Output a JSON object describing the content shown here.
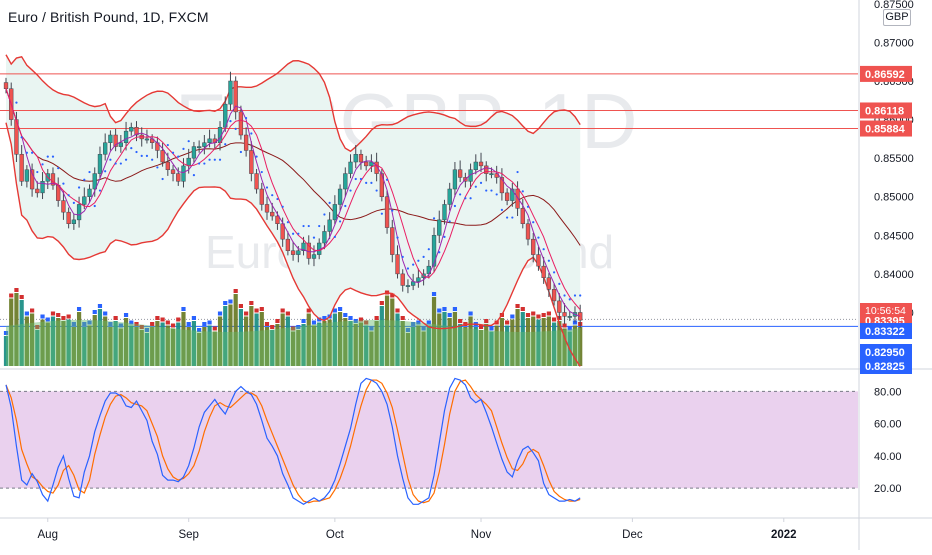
{
  "header": {
    "title": "Euro / British Pound, 1D, FXCM",
    "currency": "GBP"
  },
  "watermark": {
    "symbol": "EURGBP, 1D",
    "name": "Euro / British Pound"
  },
  "colors": {
    "up": "#26a69a",
    "down": "#ef5350",
    "bb_band": "#e53935",
    "bb_basis": "#8b1a1a",
    "bb_fill": "#e9f5f2",
    "psar": "#2962ff",
    "ma_fast": "#9c27b0",
    "ma_slow": "#e91e63",
    "vol_bar": "#6b7c2a",
    "vol_area": "#66bb6a",
    "vol_hi": "#2962ff",
    "vol_hi_down": "#d32f2f",
    "stoch_k": "#2962ff",
    "stoch_d": "#ff6d00",
    "stoch_band": "#e1bee7",
    "hline": "#ef5350"
  },
  "chart_data": [
    {
      "type": "candlestick",
      "title": "Euro / British Pound, 1D, FXCM",
      "ylim": [
        0.8278,
        0.8755
      ],
      "y_ticks": [
        "0.87500",
        "0.87000",
        "0.86500",
        "0.86000",
        "0.85500",
        "0.85000",
        "0.84500",
        "0.84000",
        "0.83500"
      ],
      "y_tick_values": [
        0.875,
        0.87,
        0.865,
        0.86,
        0.855,
        0.85,
        0.845,
        0.84,
        0.835
      ],
      "x_ticks": [
        "Aug",
        "Sep",
        "Oct",
        "Nov",
        "Dec",
        "2022"
      ],
      "x_tick_index": [
        8,
        35,
        63,
        91,
        120,
        149
      ],
      "horizontal_lines": [
        0.86592,
        0.86118,
        0.85884
      ],
      "price_labels": [
        {
          "value": 0.86592,
          "text": "0.86592",
          "kind": "line"
        },
        {
          "value": 0.86118,
          "text": "0.86118",
          "kind": "line"
        },
        {
          "value": 0.85884,
          "text": "0.85884",
          "kind": "line"
        },
        {
          "value": 0.83395,
          "text": "0.83395",
          "kind": "last"
        },
        {
          "value": 0.83322,
          "text": "0.83322",
          "kind": "indicator"
        },
        {
          "value": 0.8295,
          "text": "0.82950",
          "kind": "indicator"
        },
        {
          "value": 0.82825,
          "text": "0.82825",
          "kind": "indicator"
        }
      ],
      "countdown": "10:56:54",
      "closes": [
        0.864,
        0.86,
        0.8555,
        0.852,
        0.8535,
        0.851,
        0.8505,
        0.852,
        0.853,
        0.8515,
        0.8495,
        0.848,
        0.8465,
        0.847,
        0.849,
        0.85,
        0.851,
        0.853,
        0.8555,
        0.857,
        0.858,
        0.8565,
        0.857,
        0.8585,
        0.859,
        0.858,
        0.8575,
        0.8575,
        0.857,
        0.856,
        0.8545,
        0.8535,
        0.853,
        0.852,
        0.854,
        0.855,
        0.8565,
        0.8565,
        0.857,
        0.8575,
        0.857,
        0.859,
        0.862,
        0.865,
        0.861,
        0.858,
        0.856,
        0.853,
        0.851,
        0.849,
        0.848,
        0.8475,
        0.8465,
        0.8445,
        0.843,
        0.8425,
        0.843,
        0.844,
        0.842,
        0.8425,
        0.844,
        0.8455,
        0.847,
        0.849,
        0.851,
        0.853,
        0.8545,
        0.8555,
        0.8545,
        0.854,
        0.8545,
        0.853,
        0.85,
        0.846,
        0.8425,
        0.84,
        0.8385,
        0.8385,
        0.839,
        0.8395,
        0.84,
        0.841,
        0.845,
        0.847,
        0.849,
        0.851,
        0.8535,
        0.8525,
        0.852,
        0.8535,
        0.8545,
        0.854,
        0.853,
        0.853,
        0.8525,
        0.8505,
        0.8495,
        0.851,
        0.8485,
        0.8465,
        0.8445,
        0.8425,
        0.841,
        0.8395,
        0.838,
        0.8365,
        0.835,
        0.8345,
        0.8345,
        0.835,
        0.834
      ],
      "series": [
        {
          "name": "%K",
          "values": [
            84,
            70,
            46,
            25,
            22,
            29,
            24,
            16,
            12,
            22,
            33,
            40,
            26,
            15,
            14,
            30,
            40,
            55,
            65,
            74,
            79,
            79,
            77,
            71,
            70,
            74,
            68,
            62,
            49,
            41,
            28,
            25,
            25,
            24,
            27,
            34,
            45,
            58,
            67,
            71,
            75,
            70,
            66,
            73,
            80,
            83,
            80,
            78,
            72,
            62,
            51,
            46,
            40,
            29,
            22,
            14,
            12,
            10,
            12,
            14,
            12,
            14,
            18,
            25,
            35,
            46,
            57,
            72,
            85,
            88,
            87,
            85,
            80,
            72,
            58,
            40,
            26,
            14,
            10,
            10,
            12,
            14,
            28,
            48,
            68,
            82,
            88,
            87,
            84,
            76,
            73,
            75,
            67,
            58,
            48,
            38,
            30,
            27,
            37,
            44,
            46,
            42,
            37,
            23,
            16,
            14,
            12,
            12,
            13,
            12,
            14
          ]
        },
        {
          "name": "%D",
          "values": [
            84,
            76,
            62,
            44,
            35,
            27,
            25,
            21,
            18,
            17,
            22,
            31,
            34,
            28,
            19,
            17,
            25,
            41,
            53,
            64,
            72,
            77,
            78,
            76,
            73,
            72,
            71,
            68,
            60,
            52,
            40,
            32,
            27,
            25,
            26,
            29,
            34,
            43,
            55,
            64,
            71,
            73,
            71,
            70,
            73,
            76,
            79,
            79,
            77,
            71,
            62,
            54,
            46,
            38,
            30,
            22,
            16,
            12,
            11,
            12,
            12,
            13,
            14,
            19,
            26,
            35,
            46,
            59,
            71,
            81,
            87,
            87,
            85,
            79,
            70,
            56,
            41,
            26,
            16,
            12,
            11,
            12,
            17,
            30,
            47,
            66,
            80,
            86,
            87,
            83,
            78,
            75,
            72,
            68,
            58,
            48,
            39,
            32,
            31,
            35,
            42,
            44,
            42,
            34,
            25,
            18,
            15,
            13,
            12,
            12,
            13
          ]
        }
      ]
    },
    {
      "type": "line",
      "y_ticks": [
        "80.00",
        "60.00",
        "40.00",
        "20.00"
      ],
      "y_tick_values": [
        80,
        60,
        40,
        20
      ],
      "ylim": [
        4,
        92
      ],
      "bands": [
        20,
        80
      ]
    }
  ]
}
